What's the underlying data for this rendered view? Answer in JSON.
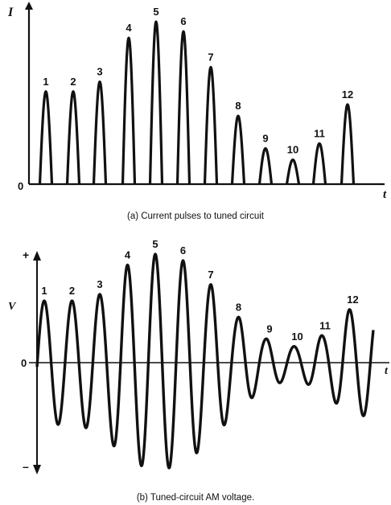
{
  "colors": {
    "ink": "#111111",
    "background": "#ffffff"
  },
  "top_panel": {
    "y_axis_label": "I",
    "x_axis_label": "t",
    "origin_label": "0",
    "caption": "(a) Current pulses to tuned circuit",
    "pulse_labels": [
      "1",
      "2",
      "3",
      "4",
      "5",
      "6",
      "7",
      "8",
      "9",
      "10",
      "11",
      "12"
    ]
  },
  "bottom_panel": {
    "y_axis_label": "V",
    "plus_label": "+",
    "minus_label": "–",
    "origin_label": "0",
    "x_axis_label": "t",
    "caption": "(b) Tuned-circuit AM voltage.",
    "peak_labels": [
      "1",
      "2",
      "3",
      "4",
      "5",
      "6",
      "7",
      "8",
      "9",
      "10",
      "11",
      "12"
    ]
  },
  "chart_data": [
    {
      "type": "bar",
      "title": "(a) Current pulses to tuned circuit",
      "xlabel": "t",
      "ylabel": "I",
      "categories": [
        "1",
        "2",
        "3",
        "4",
        "5",
        "6",
        "7",
        "8",
        "9",
        "10",
        "11",
        "12"
      ],
      "values": [
        0.57,
        0.57,
        0.63,
        0.9,
        1.0,
        0.94,
        0.72,
        0.42,
        0.22,
        0.15,
        0.25,
        0.49
      ],
      "ylim": [
        0,
        1
      ]
    },
    {
      "type": "line",
      "title": "(b) Tuned-circuit AM voltage.",
      "xlabel": "t",
      "ylabel": "V",
      "categories": [
        "1",
        "2",
        "3",
        "4",
        "5",
        "6",
        "7",
        "8",
        "9",
        "10",
        "11",
        "12"
      ],
      "values": [
        0.57,
        0.57,
        0.63,
        0.9,
        1.0,
        0.94,
        0.72,
        0.42,
        0.22,
        0.15,
        0.25,
        0.49
      ],
      "ylim": [
        -1,
        1
      ]
    }
  ]
}
